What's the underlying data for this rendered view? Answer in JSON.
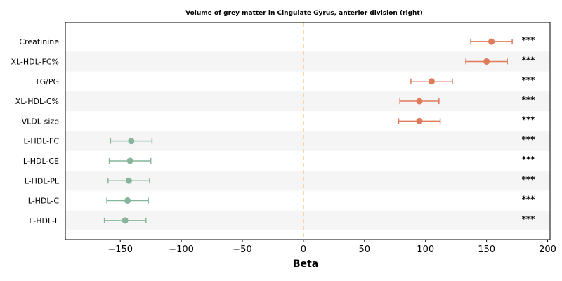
{
  "chart_data": {
    "type": "scatter",
    "title": "Volume of grey matter in Cingulate Gyrus, anterior division (right)",
    "xlabel": "Beta",
    "ylabel": "",
    "xlim": [
      -195,
      202
    ],
    "xticks": [
      -150,
      -100,
      -50,
      0,
      50,
      100,
      150,
      200
    ],
    "xtick_labels": [
      "−150",
      "−100",
      "−50",
      "0",
      "50",
      "100",
      "150",
      "200"
    ],
    "reference_line": 0,
    "colors": {
      "positive": "#e07b5a",
      "negative": "#86b59b",
      "reference": "#f5c77e",
      "band": "#f5f5f5"
    },
    "series": [
      {
        "category": "Creatinine",
        "beta": 154,
        "ci": [
          137,
          171
        ],
        "sig": "***"
      },
      {
        "category": "XL-HDL-FC%",
        "beta": 150,
        "ci": [
          133,
          167
        ],
        "sig": "***"
      },
      {
        "category": "TG/PG",
        "beta": 105,
        "ci": [
          88,
          122
        ],
        "sig": "***"
      },
      {
        "category": "XL-HDL-C%",
        "beta": 95,
        "ci": [
          79,
          111
        ],
        "sig": "***"
      },
      {
        "category": "VLDL-size",
        "beta": 95,
        "ci": [
          78,
          112
        ],
        "sig": "***"
      },
      {
        "category": "L-HDL-FC",
        "beta": -141,
        "ci": [
          -158,
          -124
        ],
        "sig": "***"
      },
      {
        "category": "L-HDL-CE",
        "beta": -142,
        "ci": [
          -159,
          -125
        ],
        "sig": "***"
      },
      {
        "category": "L-HDL-PL",
        "beta": -143,
        "ci": [
          -160,
          -126
        ],
        "sig": "***"
      },
      {
        "category": "L-HDL-C",
        "beta": -144,
        "ci": [
          -161,
          -127
        ],
        "sig": "***"
      },
      {
        "category": "L-HDL-L",
        "beta": -146,
        "ci": [
          -163,
          -129
        ],
        "sig": "***"
      }
    ]
  }
}
